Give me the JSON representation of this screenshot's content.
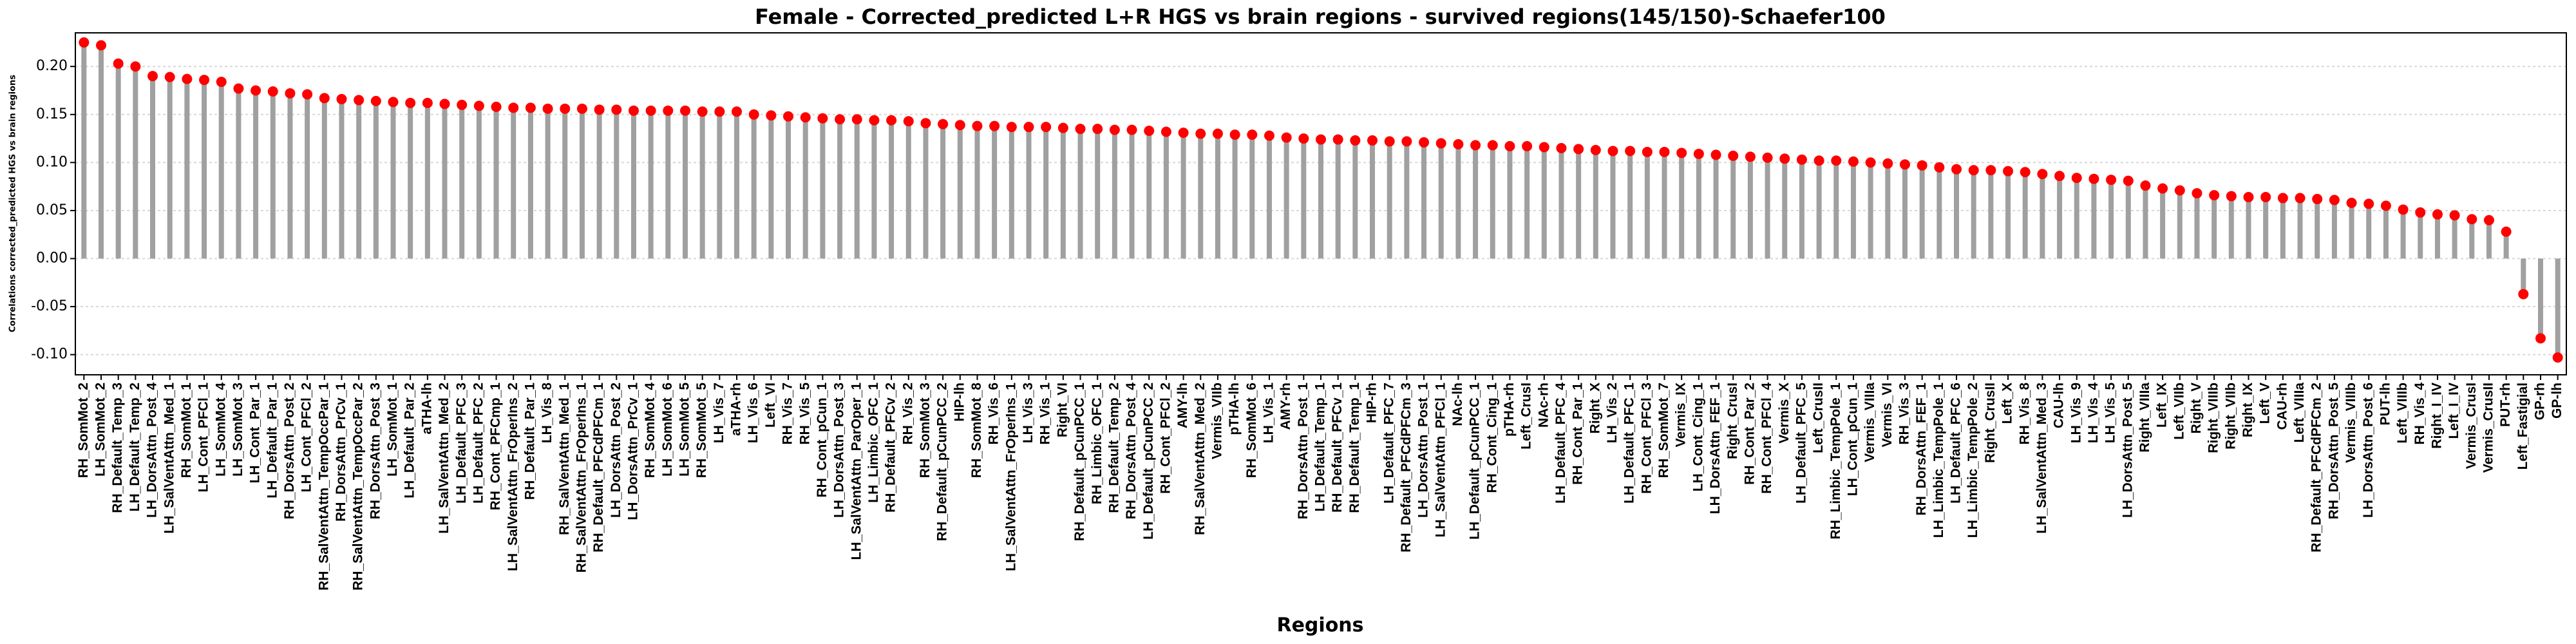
{
  "chart_data": {
    "type": "lollipop",
    "title": "Female - Corrected_predicted L+R HGS vs brain regions - survived regions(145/150)-Schaefer100",
    "x_label": "Regions",
    "y_label": "Correlations corrected_predicted HGS vs brain regions",
    "categories": [
      "RH_SomMot_2",
      "LH_SomMot_2",
      "RH_Default_Temp_3",
      "LH_Default_Temp_2",
      "LH_DorsAttn_Post_4",
      "LH_SalVentAttn_Med_1",
      "RH_SomMot_1",
      "LH_Cont_PFCl_1",
      "LH_SomMot_4",
      "LH_SomMot_3",
      "LH_Cont_Par_1",
      "LH_Default_Par_1",
      "RH_DorsAttn_Post_2",
      "LH_Cont_PFCl_2",
      "RH_SalVentAttn_TempOccPar_1",
      "RH_DorsAttn_PrCv_1",
      "RH_SalVentAttn_TempOccPar_2",
      "RH_DorsAttn_Post_3",
      "LH_SomMot_1",
      "LH_Default_Par_2",
      "aTHA-lh",
      "LH_SalVentAttn_Med_2",
      "LH_Default_PFC_3",
      "LH_Default_PFC_2",
      "RH_Cont_PFCmp_1",
      "LH_SalVentAttn_FrOperIns_2",
      "RH_Default_Par_1",
      "LH_Vis_8",
      "RH_SalVentAttn_Med_1",
      "RH_SalVentAttn_FrOperIns_1",
      "RH_Default_PFCdPFCm_1",
      "LH_DorsAttn_Post_2",
      "LH_DorsAttn_PrCv_1",
      "RH_SomMot_4",
      "LH_SomMot_6",
      "LH_SomMot_5",
      "RH_SomMot_5",
      "LH_Vis_7",
      "aTHA-rh",
      "LH_Vis_6",
      "Left_VI",
      "RH_Vis_7",
      "RH_Vis_5",
      "RH_Cont_pCun_1",
      "LH_DorsAttn_Post_3",
      "LH_SalVentAttn_ParOper_1",
      "LH_Limbic_OFC_1",
      "RH_Default_PFCv_2",
      "RH_Vis_2",
      "RH_SomMot_3",
      "RH_Default_pCunPCC_2",
      "HIP-lh",
      "RH_SomMot_8",
      "RH_Vis_6",
      "LH_SalVentAttn_FrOperIns_1",
      "LH_Vis_3",
      "RH_Vis_1",
      "Right_VI",
      "RH_Default_pCunPCC_1",
      "RH_Limbic_OFC_1",
      "RH_Default_Temp_2",
      "RH_DorsAttn_Post_4",
      "LH_Default_pCunPCC_2",
      "RH_Cont_PFCl_2",
      "AMY-lh",
      "RH_SalVentAttn_Med_2",
      "Vermis_VIIb",
      "pTHA-lh",
      "RH_SomMot_6",
      "LH_Vis_1",
      "AMY-rh",
      "RH_DorsAttn_Post_1",
      "LH_Default_Temp_1",
      "RH_Default_PFCv_1",
      "RH_Default_Temp_1",
      "HIP-rh",
      "LH_Default_PFC_7",
      "RH_Default_PFCdPFCm_3",
      "LH_DorsAttn_Post_1",
      "LH_SalVentAttn_PFCl_1",
      "NAc-lh",
      "LH_Default_pCunPCC_1",
      "RH_Cont_Cing_1",
      "pTHA-rh",
      "Left_CrusI",
      "NAc-rh",
      "LH_Default_PFC_4",
      "RH_Cont_Par_1",
      "Right_X",
      "LH_Vis_2",
      "LH_Default_PFC_1",
      "RH_Cont_PFCl_3",
      "RH_SomMot_7",
      "Vermis_IX",
      "LH_Cont_Cing_1",
      "LH_DorsAttn_FEF_1",
      "Right_CrusI",
      "RH_Cont_Par_2",
      "RH_Cont_PFCl_4",
      "Vermis_X",
      "LH_Default_PFC_5",
      "Left_CrusII",
      "RH_Limbic_TempPole_1",
      "LH_Cont_pCun_1",
      "Vermis_VIIIa",
      "Vermis_VI",
      "RH_Vis_3",
      "RH_DorsAttn_FEF_1",
      "LH_Limbic_TempPole_1",
      "LH_Default_PFC_6",
      "LH_Limbic_TempPole_2",
      "Right_CrusII",
      "Left_X",
      "RH_Vis_8",
      "LH_SalVentAttn_Med_3",
      "CAU-lh",
      "LH_Vis_9",
      "LH_Vis_4",
      "LH_Vis_5",
      "LH_DorsAttn_Post_5",
      "Right_VIIIa",
      "Left_IX",
      "Left_VIIb",
      "Right_V",
      "Right_VIIIb",
      "Right_VIIb",
      "Right_IX",
      "Left_V",
      "CAU-rh",
      "Left_VIIIa",
      "RH_Default_PFCdPFCm_2",
      "RH_DorsAttn_Post_5",
      "Vermis_VIIIb",
      "LH_DorsAttn_Post_6",
      "PUT-lh",
      "Left_VIIIb",
      "RH_Vis_4",
      "Right_I_IV",
      "Left_I_IV",
      "Vermis_CrusI",
      "Vermis_CrusII",
      "PUT-rh",
      "Left_Fastigial",
      "GP-rh",
      "GP-lh"
    ],
    "values": [
      0.225,
      0.222,
      0.203,
      0.2,
      0.19,
      0.189,
      0.187,
      0.186,
      0.184,
      0.177,
      0.175,
      0.174,
      0.172,
      0.171,
      0.167,
      0.166,
      0.165,
      0.164,
      0.163,
      0.162,
      0.162,
      0.161,
      0.16,
      0.159,
      0.158,
      0.157,
      0.157,
      0.156,
      0.156,
      0.156,
      0.155,
      0.155,
      0.154,
      0.154,
      0.154,
      0.154,
      0.153,
      0.153,
      0.153,
      0.15,
      0.149,
      0.148,
      0.147,
      0.146,
      0.145,
      0.145,
      0.144,
      0.144,
      0.143,
      0.141,
      0.14,
      0.139,
      0.138,
      0.138,
      0.137,
      0.137,
      0.137,
      0.136,
      0.135,
      0.135,
      0.134,
      0.134,
      0.133,
      0.132,
      0.131,
      0.13,
      0.13,
      0.129,
      0.129,
      0.128,
      0.126,
      0.125,
      0.124,
      0.124,
      0.123,
      0.123,
      0.122,
      0.122,
      0.121,
      0.12,
      0.119,
      0.118,
      0.118,
      0.117,
      0.117,
      0.116,
      0.115,
      0.114,
      0.113,
      0.112,
      0.112,
      0.111,
      0.111,
      0.11,
      0.109,
      0.108,
      0.107,
      0.106,
      0.105,
      0.104,
      0.103,
      0.102,
      0.102,
      0.101,
      0.1,
      0.099,
      0.098,
      0.097,
      0.095,
      0.093,
      0.092,
      0.092,
      0.091,
      0.09,
      0.088,
      0.086,
      0.084,
      0.083,
      0.082,
      0.081,
      0.076,
      0.073,
      0.071,
      0.068,
      0.066,
      0.065,
      0.064,
      0.064,
      0.063,
      0.063,
      0.062,
      0.061,
      0.058,
      0.057,
      0.055,
      0.051,
      0.048,
      0.046,
      0.045,
      0.041,
      0.04,
      0.028,
      -0.037,
      -0.083,
      -0.103
    ],
    "marker_color": "#ff0000",
    "stem_color": "#a0a0a0",
    "ylim": [
      -0.121,
      0.235
    ],
    "yticks": [
      {
        "value": -0.1,
        "label": "-0.10"
      },
      {
        "value": -0.05,
        "label": "-0.05"
      },
      {
        "value": 0,
        "label": "0.00"
      },
      {
        "value": 0.05,
        "label": "0.05"
      },
      {
        "value": 0.1,
        "label": "0.10"
      },
      {
        "value": 0.15,
        "label": "0.15"
      },
      {
        "value": 0.2,
        "label": "0.20"
      }
    ],
    "grid": true
  }
}
